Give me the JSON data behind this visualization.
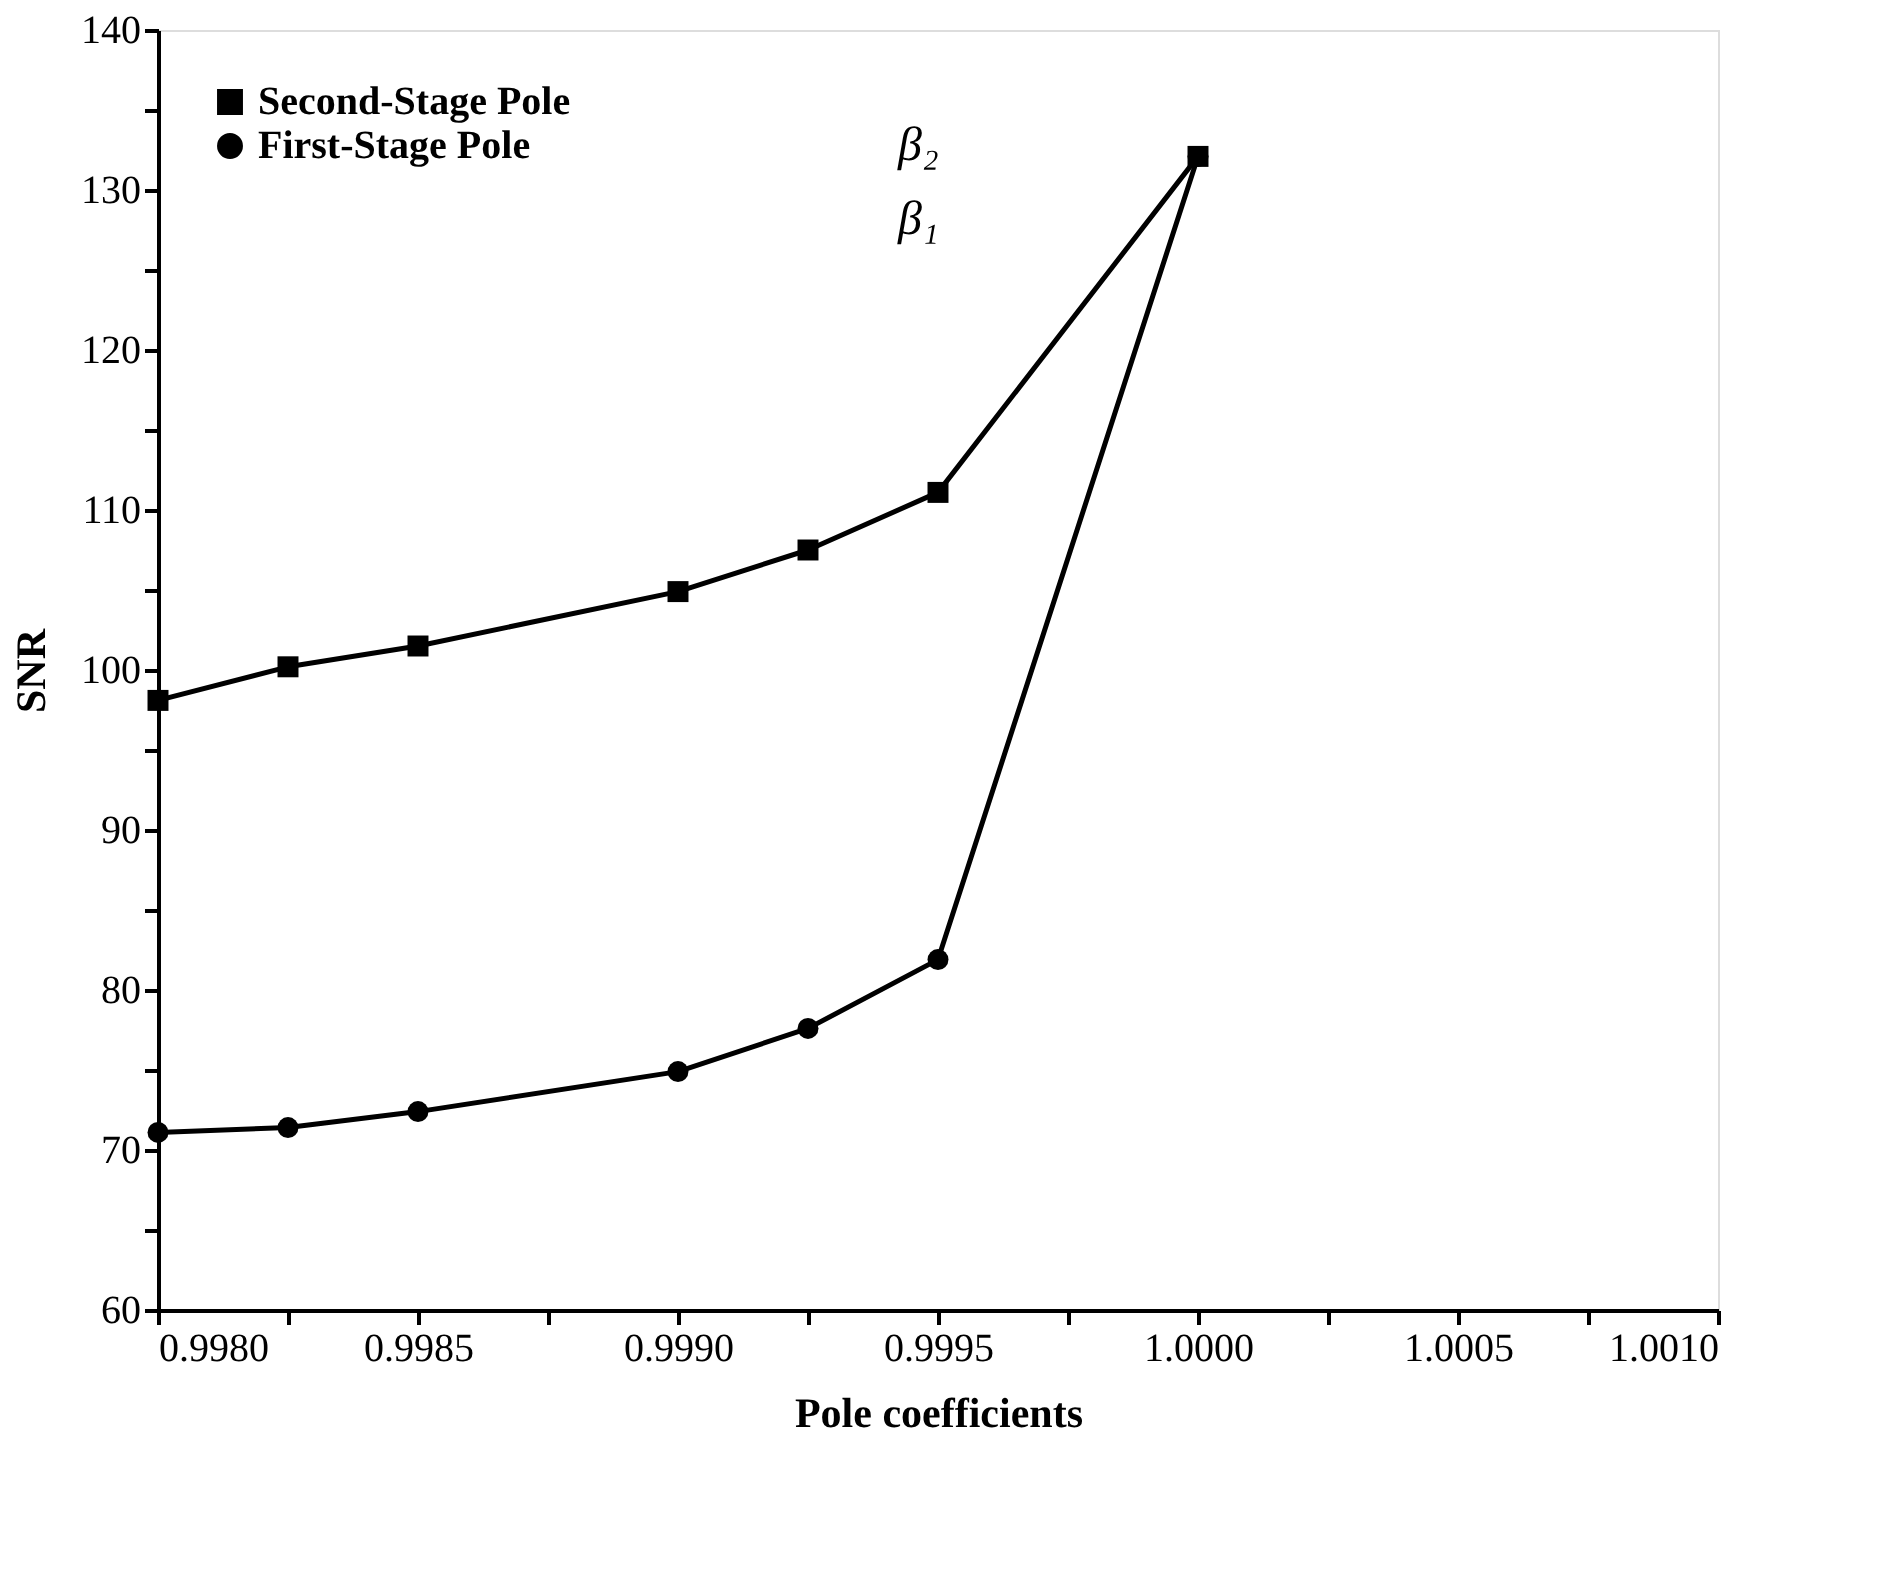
{
  "chart_data": {
    "type": "line",
    "xlabel": "Pole coefficients",
    "ylabel": "SNR",
    "xlim": [
      0.998,
      1.001
    ],
    "ylim": [
      60,
      140
    ],
    "xticks": [
      {
        "value": 0.998,
        "label": "0.9980"
      },
      {
        "value": 0.99825,
        "label": null
      },
      {
        "value": 0.9985,
        "label": "0.9985"
      },
      {
        "value": 0.99875,
        "label": null
      },
      {
        "value": 0.999,
        "label": "0.9990"
      },
      {
        "value": 0.99925,
        "label": null
      },
      {
        "value": 0.9995,
        "label": "0.9995"
      },
      {
        "value": 0.99975,
        "label": null
      },
      {
        "value": 1.0,
        "label": "1.0000"
      },
      {
        "value": 1.00025,
        "label": null
      },
      {
        "value": 1.0005,
        "label": "1.0005"
      },
      {
        "value": 1.00075,
        "label": null
      },
      {
        "value": 1.001,
        "label": "1.0010"
      }
    ],
    "yticks": [
      60,
      {
        "value": 65,
        "label": null
      },
      70,
      {
        "value": 75,
        "label": null
      },
      80,
      {
        "value": 85,
        "label": null
      },
      90,
      {
        "value": 95,
        "label": null
      },
      100,
      {
        "value": 105,
        "label": null
      },
      110,
      {
        "value": 115,
        "label": null
      },
      120,
      {
        "value": 125,
        "label": null
      },
      130,
      {
        "value": 135,
        "label": null
      },
      140
    ],
    "x": [
      0.998,
      0.99825,
      0.9985,
      0.999,
      0.99925,
      0.9995,
      1.0
    ],
    "series": [
      {
        "name": "Second-Stage Pole",
        "color": "#000000",
        "marker": "square",
        "values": [
          98.1,
          100.2,
          101.5,
          104.9,
          107.5,
          111.1,
          132.1
        ]
      },
      {
        "name": "First-Stage Pole",
        "color": "#000000",
        "marker": "circle",
        "values": [
          71.1,
          71.4,
          72.4,
          74.9,
          77.6,
          81.9,
          132.1
        ]
      }
    ],
    "annotations": [
      "β₂",
      "β₁"
    ],
    "legend": "top left",
    "grid": false,
    "line_style": "solid"
  }
}
